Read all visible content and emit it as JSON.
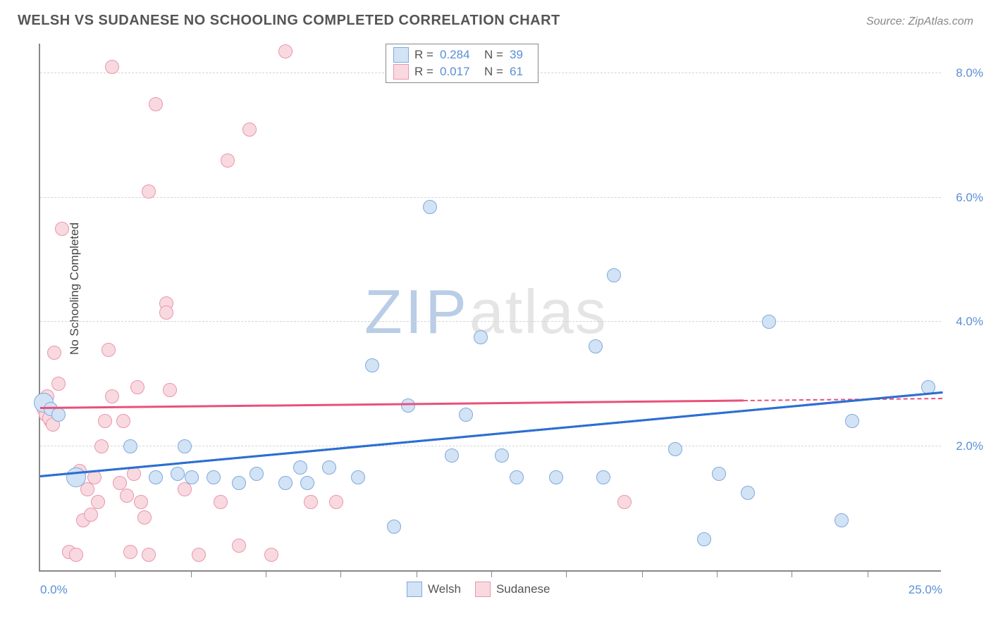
{
  "header": {
    "title": "WELSH VS SUDANESE NO SCHOOLING COMPLETED CORRELATION CHART",
    "source": "Source: ZipAtlas.com"
  },
  "watermark": {
    "part1": "ZIP",
    "part2": "atlas"
  },
  "chart": {
    "type": "scatter",
    "ylabel": "No Schooling Completed",
    "xlim": [
      0,
      25
    ],
    "ylim": [
      0,
      8.5
    ],
    "background_color": "#ffffff",
    "grid_color": "#d5d5d5",
    "axis_color": "#888888",
    "tick_label_color": "#5a8fd6",
    "y_ticks": [
      {
        "v": 2.0,
        "label": "2.0%"
      },
      {
        "v": 4.0,
        "label": "4.0%"
      },
      {
        "v": 6.0,
        "label": "6.0%"
      },
      {
        "v": 8.0,
        "label": "8.0%"
      }
    ],
    "x_ticks_minor": [
      2.08,
      4.17,
      6.25,
      8.33,
      10.42,
      12.5,
      14.58,
      16.67,
      18.75,
      20.83,
      22.92
    ],
    "x_labels": [
      {
        "v": 0,
        "label": "0.0%"
      },
      {
        "v": 25,
        "label": "25.0%"
      }
    ],
    "series": {
      "welsh": {
        "label": "Welsh",
        "color_fill": "#d2e3f6",
        "color_stroke": "#7fa9dc",
        "marker_radius": 10,
        "regression": {
          "y_start": 1.5,
          "y_end": 2.85,
          "x_end_frac": 1.0,
          "color": "#2d6fd2",
          "dashed_from": 1.0
        },
        "R": "0.284",
        "N": "39",
        "points": [
          [
            0.1,
            2.7,
            14
          ],
          [
            0.3,
            2.6,
            10
          ],
          [
            0.5,
            2.5,
            10
          ],
          [
            1.0,
            1.5,
            14
          ],
          [
            2.5,
            2.0,
            10
          ],
          [
            3.2,
            1.5,
            10
          ],
          [
            3.8,
            1.55,
            10
          ],
          [
            4.0,
            2.0,
            10
          ],
          [
            4.2,
            1.5,
            10
          ],
          [
            4.8,
            1.5,
            10
          ],
          [
            5.5,
            1.4,
            10
          ],
          [
            6.0,
            1.55,
            10
          ],
          [
            6.8,
            1.4,
            10
          ],
          [
            7.2,
            1.65,
            10
          ],
          [
            7.4,
            1.4,
            10
          ],
          [
            8.0,
            1.65,
            10
          ],
          [
            8.8,
            1.5,
            10
          ],
          [
            9.2,
            3.3,
            10
          ],
          [
            9.8,
            0.7,
            10
          ],
          [
            10.2,
            2.65,
            10
          ],
          [
            10.8,
            5.85,
            10
          ],
          [
            11.4,
            1.85,
            10
          ],
          [
            11.8,
            2.5,
            10
          ],
          [
            12.2,
            3.75,
            10
          ],
          [
            12.8,
            1.85,
            10
          ],
          [
            13.2,
            1.5,
            10
          ],
          [
            14.3,
            1.5,
            10
          ],
          [
            15.4,
            3.6,
            10
          ],
          [
            15.6,
            1.5,
            10
          ],
          [
            15.9,
            4.75,
            10
          ],
          [
            17.6,
            1.95,
            10
          ],
          [
            18.4,
            0.5,
            10
          ],
          [
            18.8,
            1.55,
            10
          ],
          [
            19.6,
            1.25,
            10
          ],
          [
            20.2,
            4.0,
            10
          ],
          [
            22.2,
            0.8,
            10
          ],
          [
            22.5,
            2.4,
            10
          ],
          [
            24.6,
            2.95,
            10
          ]
        ]
      },
      "sudanese": {
        "label": "Sudanese",
        "color_fill": "#f9d9e0",
        "color_stroke": "#e996ac",
        "marker_radius": 10,
        "regression": {
          "y_start": 2.6,
          "y_end": 2.72,
          "x_end_frac": 0.78,
          "color": "#e8517a",
          "dashed_from": 0.78
        },
        "R": "0.017",
        "N": "61",
        "points": [
          [
            0.1,
            2.6,
            10
          ],
          [
            0.2,
            2.8,
            10
          ],
          [
            0.3,
            2.4,
            10
          ],
          [
            0.15,
            2.5,
            10
          ],
          [
            0.25,
            2.45,
            10
          ],
          [
            0.35,
            2.35,
            10
          ],
          [
            0.4,
            3.5,
            10
          ],
          [
            0.5,
            3.0,
            10
          ],
          [
            0.6,
            5.5,
            10
          ],
          [
            0.8,
            0.3,
            10
          ],
          [
            1.0,
            0.25,
            10
          ],
          [
            1.1,
            1.6,
            10
          ],
          [
            1.2,
            0.8,
            10
          ],
          [
            1.3,
            1.3,
            10
          ],
          [
            1.4,
            0.9,
            10
          ],
          [
            1.5,
            1.5,
            10
          ],
          [
            1.6,
            1.1,
            10
          ],
          [
            1.7,
            2.0,
            10
          ],
          [
            1.8,
            2.4,
            10
          ],
          [
            1.9,
            3.55,
            10
          ],
          [
            2.0,
            8.1,
            10
          ],
          [
            2.0,
            2.8,
            10
          ],
          [
            2.2,
            1.4,
            10
          ],
          [
            2.3,
            2.4,
            10
          ],
          [
            2.4,
            1.2,
            10
          ],
          [
            2.5,
            0.3,
            10
          ],
          [
            2.6,
            1.55,
            10
          ],
          [
            2.7,
            2.95,
            10
          ],
          [
            2.8,
            1.1,
            10
          ],
          [
            2.9,
            0.85,
            10
          ],
          [
            3.0,
            6.1,
            10
          ],
          [
            3.0,
            0.25,
            10
          ],
          [
            3.2,
            7.5,
            10
          ],
          [
            3.5,
            4.3,
            10
          ],
          [
            3.5,
            4.15,
            10
          ],
          [
            3.6,
            2.9,
            10
          ],
          [
            4.0,
            1.3,
            10
          ],
          [
            4.4,
            0.25,
            10
          ],
          [
            5.0,
            1.1,
            10
          ],
          [
            5.2,
            6.6,
            10
          ],
          [
            5.5,
            0.4,
            10
          ],
          [
            5.8,
            7.1,
            10
          ],
          [
            6.4,
            0.25,
            10
          ],
          [
            6.8,
            8.35,
            10
          ],
          [
            7.5,
            1.1,
            10
          ],
          [
            8.2,
            1.1,
            10
          ],
          [
            16.2,
            1.1,
            10
          ]
        ]
      }
    },
    "legend_top": {
      "border_color": "#888888",
      "rows": [
        {
          "swatch_fill": "#d2e3f6",
          "swatch_stroke": "#7fa9dc",
          "r_label": "R =",
          "r_val": "0.284",
          "n_label": "N =",
          "n_val": "39"
        },
        {
          "swatch_fill": "#f9d9e0",
          "swatch_stroke": "#e996ac",
          "r_label": "R =",
          "r_val": "0.017",
          "n_label": "N =",
          "n_val": "61"
        }
      ]
    },
    "legend_bottom": [
      {
        "swatch_fill": "#d2e3f6",
        "swatch_stroke": "#7fa9dc",
        "label": "Welsh"
      },
      {
        "swatch_fill": "#f9d9e0",
        "swatch_stroke": "#e996ac",
        "label": "Sudanese"
      }
    ]
  }
}
